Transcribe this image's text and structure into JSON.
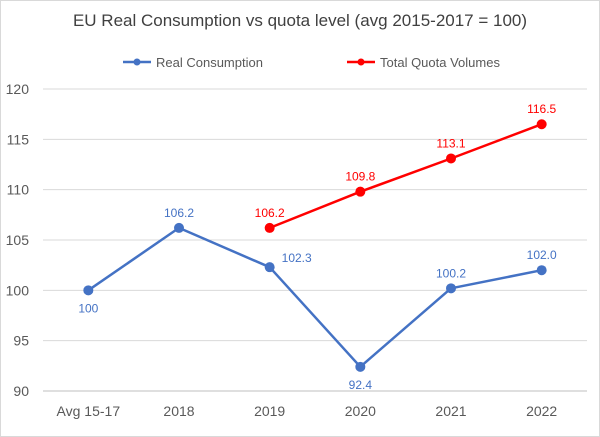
{
  "chart_data": {
    "type": "line",
    "title": "EU Real Consumption vs quota level (avg 2015-2017 = 100)",
    "categories": [
      "Avg 15-17",
      "2018",
      "2019",
      "2020",
      "2021",
      "2022"
    ],
    "ylim": [
      90,
      120
    ],
    "yticks": [
      90,
      95,
      100,
      105,
      110,
      115,
      120
    ],
    "grid": true,
    "legend_position": "top",
    "series": [
      {
        "name": "Real Consumption",
        "color": "#4472c4",
        "values": [
          100,
          106.2,
          102.3,
          92.4,
          100.2,
          102.0
        ],
        "labels": [
          "100",
          "106.2",
          "102.3",
          "92.4",
          "100.2",
          "102.0"
        ],
        "label_pos": [
          "below",
          "above",
          "right",
          "below",
          "above",
          "above"
        ]
      },
      {
        "name": "Total Quota Volumes",
        "color": "#ff0000",
        "values": [
          null,
          null,
          106.2,
          109.8,
          113.1,
          116.5
        ],
        "labels": [
          null,
          null,
          "106.2",
          "109.8",
          "113.1",
          "116.5"
        ],
        "label_pos": [
          null,
          null,
          "above",
          "above",
          "above",
          "above"
        ]
      }
    ]
  }
}
